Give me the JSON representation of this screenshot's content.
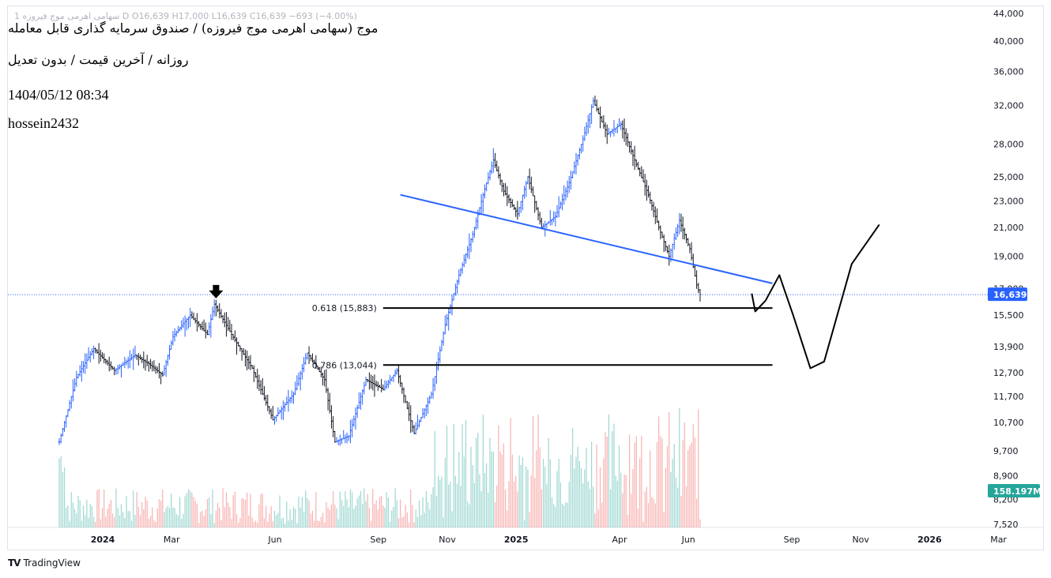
{
  "header": {
    "legend": "1 سهامی اهرمی موج فیروزه D  O16,639  H17,000  L16,639  C16,639  −693 (−4.00%)",
    "title_line1": "موج (سهامی اهرمی موج فیروزه) / صندوق سرمایه گذاری قابل معامله",
    "title_line2": "روزانه / آخرین قیمت / بدون تعدیل",
    "timestamp": "1404/05/12 08:34",
    "author": "hossein2432"
  },
  "brand": {
    "name": "TradingView",
    "logo": "TV"
  },
  "colors": {
    "up": "#2962ff",
    "down": "#131722",
    "trendline": "#2962ff",
    "price_badge": "#2962ff",
    "volume_badge": "#26a69a",
    "vol_up": "#26a69a",
    "vol_down": "#ef5350"
  },
  "chart_data": {
    "type": "bar",
    "scale": "log",
    "price_axis_ticks": [
      "44,000",
      "40,000",
      "36,000",
      "32,000",
      "28,000",
      "25,000",
      "23,000",
      "21,000",
      "19,000",
      "17,000",
      "15,500",
      "13,900",
      "12,700",
      "11,700",
      "10,700",
      "9,700",
      "8,900",
      "8,200",
      "7,520"
    ],
    "price_axis_values": [
      44000,
      40000,
      36000,
      32000,
      28000,
      25000,
      23000,
      21000,
      19000,
      17000,
      15500,
      13900,
      12700,
      11700,
      10700,
      9700,
      8900,
      8200,
      7520
    ],
    "time_axis_labels": [
      "2024",
      "Mar",
      "Jun",
      "Sep",
      "Nov",
      "2025",
      "Apr",
      "Jun",
      "Sep",
      "Nov",
      "2026",
      "Mar"
    ],
    "time_axis_index": [
      0,
      2,
      5,
      8,
      10,
      12,
      15,
      17,
      20,
      22,
      24,
      26
    ],
    "last_price": 16639,
    "last_price_label": "16,639",
    "volume_label": "158.197M",
    "fib_levels": [
      {
        "label": "0.618 (15,883)",
        "value": 15883
      },
      {
        "label": "0.786 (13,044)",
        "value": 13044
      }
    ],
    "trendline": {
      "from": {
        "month_index": 9.9,
        "price": 23500
      },
      "to": {
        "month_index": 20.7,
        "price": 17300
      }
    },
    "projection_path": [
      {
        "month_index": 20.1,
        "price": 16700
      },
      {
        "month_index": 20.2,
        "price": 15700
      },
      {
        "month_index": 20.5,
        "price": 16300
      },
      {
        "month_index": 20.9,
        "price": 17800
      },
      {
        "month_index": 21.3,
        "price": 15500
      },
      {
        "month_index": 21.8,
        "price": 12900
      },
      {
        "month_index": 22.2,
        "price": 13200
      },
      {
        "month_index": 23.0,
        "price": 18500
      },
      {
        "month_index": 23.8,
        "price": 21200
      }
    ],
    "anchor_points": [
      {
        "month_index": 0.0,
        "price": 10000
      },
      {
        "month_index": 0.5,
        "price": 12500
      },
      {
        "month_index": 1.0,
        "price": 13800
      },
      {
        "month_index": 1.6,
        "price": 12800
      },
      {
        "month_index": 2.2,
        "price": 13500
      },
      {
        "month_index": 2.6,
        "price": 13100
      },
      {
        "month_index": 3.0,
        "price": 12600
      },
      {
        "month_index": 3.3,
        "price": 14400
      },
      {
        "month_index": 3.8,
        "price": 15500
      },
      {
        "month_index": 4.3,
        "price": 14500
      },
      {
        "month_index": 4.5,
        "price": 16100
      },
      {
        "month_index": 5.0,
        "price": 14500
      },
      {
        "month_index": 5.6,
        "price": 12900
      },
      {
        "month_index": 6.2,
        "price": 10800
      },
      {
        "month_index": 6.8,
        "price": 11800
      },
      {
        "month_index": 7.2,
        "price": 13600
      },
      {
        "month_index": 7.7,
        "price": 12400
      },
      {
        "month_index": 8.0,
        "price": 10000
      },
      {
        "month_index": 8.4,
        "price": 10200
      },
      {
        "month_index": 8.9,
        "price": 12400
      },
      {
        "month_index": 9.4,
        "price": 12000
      },
      {
        "month_index": 9.8,
        "price": 12800
      },
      {
        "month_index": 10.3,
        "price": 10300
      },
      {
        "month_index": 10.8,
        "price": 11800
      },
      {
        "month_index": 11.2,
        "price": 15000
      },
      {
        "month_index": 11.6,
        "price": 17800
      },
      {
        "month_index": 12.0,
        "price": 20500
      },
      {
        "month_index": 12.3,
        "price": 23500
      },
      {
        "month_index": 12.6,
        "price": 26500
      },
      {
        "month_index": 12.9,
        "price": 23800
      },
      {
        "month_index": 13.3,
        "price": 22000
      },
      {
        "month_index": 13.6,
        "price": 25000
      },
      {
        "month_index": 14.0,
        "price": 21000
      },
      {
        "month_index": 14.4,
        "price": 21800
      },
      {
        "month_index": 14.8,
        "price": 24500
      },
      {
        "month_index": 15.2,
        "price": 28500
      },
      {
        "month_index": 15.5,
        "price": 32500
      },
      {
        "month_index": 15.9,
        "price": 29000
      },
      {
        "month_index": 16.3,
        "price": 30000
      },
      {
        "month_index": 16.7,
        "price": 26500
      },
      {
        "month_index": 17.1,
        "price": 23500
      },
      {
        "month_index": 17.4,
        "price": 21000
      },
      {
        "month_index": 17.7,
        "price": 19000
      },
      {
        "month_index": 18.0,
        "price": 21500
      },
      {
        "month_index": 18.3,
        "price": 19500
      },
      {
        "month_index": 18.5,
        "price": 17200
      },
      {
        "month_index": 18.6,
        "price": 16639
      }
    ],
    "arrow_marker": {
      "month_index": 4.55,
      "price": 16200
    }
  }
}
